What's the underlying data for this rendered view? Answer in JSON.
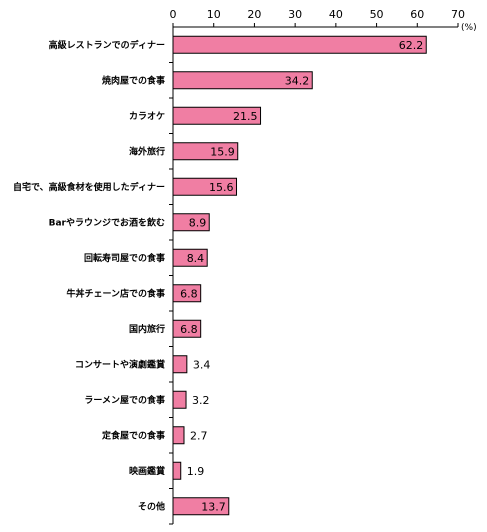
{
  "chart_data": {
    "type": "bar",
    "orientation": "horizontal",
    "categories": [
      "高級レストランでのディナー",
      "焼肉屋での食事",
      "カラオケ",
      "海外旅行",
      "自宅で、高級食材を使用したディナー",
      "Barやラウンジでお酒を飲む",
      "回転寿司屋での食事",
      "牛丼チェーン店での食事",
      "国内旅行",
      "コンサートや演劇鑑賞",
      "ラーメン屋での食事",
      "定食屋での食事",
      "映画鑑賞",
      "その他"
    ],
    "values": [
      62.2,
      34.2,
      21.5,
      15.9,
      15.6,
      8.9,
      8.4,
      6.8,
      6.8,
      3.4,
      3.2,
      2.7,
      1.9,
      13.7
    ],
    "value_labels": [
      "62.2",
      "34.2",
      "21.5",
      "15.9",
      "15.6",
      "8.9",
      "8.4",
      "6.8",
      "6.8",
      "3.4",
      "3.2",
      "2.7",
      "1.9",
      "13.7"
    ],
    "xlim": [
      0,
      70
    ],
    "xticks": [
      "0",
      "10",
      "20",
      "30",
      "40",
      "50",
      "60",
      "70"
    ],
    "unit": "(%)",
    "grid": false,
    "bar_color": "#f07ea3",
    "bar_edge_color": "#000000"
  }
}
